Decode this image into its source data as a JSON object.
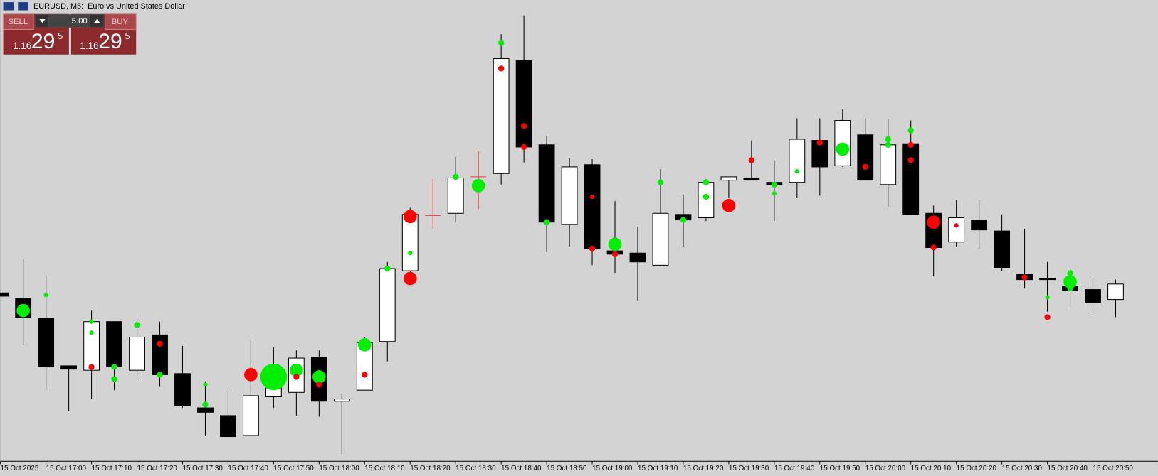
{
  "chart_data": {
    "type": "candlestick",
    "title": "EURUSD, M5:  Euro vs United States Dollar",
    "categories": [
      "15 Oct 2025",
      null,
      "15 Oct 17:00",
      null,
      "15 Oct 17:10",
      null,
      "15 Oct 17:20",
      null,
      "15 Oct 17:30",
      null,
      "15 Oct 17:40",
      null,
      "15 Oct 17:50",
      null,
      "15 Oct 18:00",
      null,
      "15 Oct 18:10",
      null,
      "15 Oct 18:20",
      null,
      "15 Oct 18:30",
      null,
      "15 Oct 18:40",
      null,
      "15 Oct 18:50",
      null,
      "15 Oct 19:00",
      null,
      "15 Oct 19:10",
      null,
      "15 Oct 19:20",
      null,
      "15 Oct 19:30",
      null,
      "15 Oct 19:40",
      null,
      "15 Oct 19:50",
      null,
      "15 Oct 20:00",
      null,
      "15 Oct 20:10",
      null,
      "15 Oct 20:20",
      null,
      "15 Oct 20:30",
      null,
      "15 Oct 20:40",
      null,
      "15 Oct 20:50",
      null
    ],
    "open": [
      1.16285,
      1.1628,
      1.16262,
      1.16219,
      1.16215,
      1.16259,
      1.16215,
      1.16247,
      1.16212,
      1.16181,
      1.16174,
      1.16156,
      1.16191,
      1.16195,
      1.16227,
      1.16187,
      1.16197,
      1.16241,
      1.16305,
      1.16355,
      1.16357,
      1.1639,
      1.16393,
      1.16495,
      1.16419,
      1.16347,
      1.16401,
      1.16323,
      1.16321,
      1.1631,
      1.16356,
      1.16353,
      1.16387,
      1.16389,
      1.16385,
      1.16385,
      1.16423,
      1.164,
      1.16428,
      1.16383,
      1.1642,
      1.16357,
      1.16331,
      1.16351,
      1.16341,
      1.16302,
      1.16298,
      1.16291,
      1.16288,
      1.16279
    ],
    "high": [
      1.16285,
      1.16315,
      1.16301,
      1.16219,
      1.16269,
      1.16259,
      1.16263,
      1.16259,
      1.16237,
      1.16205,
      1.16196,
      1.16243,
      1.16236,
      1.16233,
      1.16233,
      1.16194,
      1.16245,
      1.16313,
      1.16362,
      1.16388,
      1.16408,
      1.16413,
      1.16519,
      1.16536,
      1.16427,
      1.16407,
      1.16406,
      1.16368,
      1.16345,
      1.16397,
      1.16374,
      1.16388,
      1.1639,
      1.16423,
      1.16405,
      1.16443,
      1.16443,
      1.16451,
      1.16443,
      1.16442,
      1.16441,
      1.16364,
      1.16369,
      1.16369,
      1.16356,
      1.16343,
      1.16313,
      1.16307,
      1.16299,
      1.16297
    ],
    "low": [
      1.16282,
      1.16238,
      1.16197,
      1.16178,
      1.16189,
      1.16197,
      1.16206,
      1.162,
      1.16181,
      1.16156,
      1.16155,
      1.16156,
      1.16181,
      1.16174,
      1.16173,
      1.16139,
      1.16197,
      1.16223,
      1.16298,
      1.16343,
      1.16349,
      1.16361,
      1.16383,
      1.16403,
      1.16322,
      1.16327,
      1.1631,
      1.16303,
      1.16278,
      1.16309,
      1.16326,
      1.1635,
      1.16371,
      1.16387,
      1.1635,
      1.16371,
      1.16373,
      1.16399,
      1.16387,
      1.16363,
      1.16356,
      1.163,
      1.16327,
      1.16325,
      1.16305,
      1.16289,
      1.16268,
      1.16271,
      1.16265,
      1.16263
    ],
    "close": [
      1.16282,
      1.16263,
      1.16218,
      1.16216,
      1.16259,
      1.16218,
      1.16245,
      1.16211,
      1.16183,
      1.16177,
      1.16155,
      1.16192,
      1.16199,
      1.16226,
      1.16187,
      1.16189,
      1.1624,
      1.16307,
      1.16356,
      1.16355,
      1.16389,
      1.1639,
      1.16497,
      1.16417,
      1.16349,
      1.16399,
      1.16325,
      1.1632,
      1.16313,
      1.16357,
      1.16351,
      1.16385,
      1.1639,
      1.16387,
      1.16383,
      1.16424,
      1.16399,
      1.16441,
      1.16387,
      1.16419,
      1.16356,
      1.16326,
      1.16353,
      1.16342,
      1.16308,
      1.16297,
      1.16297,
      1.16287,
      1.16276,
      1.16293
    ],
    "up_color": "#ffffff",
    "down_color": "#000000",
    "doji_color": "#e53935",
    "series": [
      {
        "color": "#00ee00",
        "values": [
          null,
          1.16269,
          1.16283,
          null,
          1.16259,
          1.16218,
          1.16256,
          1.16211,
          null,
          1.16202,
          null,
          null,
          1.16209,
          1.16215,
          1.16209,
          null,
          1.16238,
          1.16307,
          1.16321,
          null,
          1.1639,
          1.16382,
          1.16511,
          null,
          1.16349,
          null,
          null,
          1.16329,
          null,
          1.16385,
          1.16351,
          1.16385,
          null,
          null,
          1.16383,
          1.16395,
          null,
          1.16415,
          null,
          1.16424,
          1.16432,
          null,
          null,
          null,
          null,
          null,
          1.16281,
          1.16303,
          null,
          null
        ],
        "sizes": [
          null,
          9,
          3,
          null,
          3,
          4,
          4,
          4,
          null,
          3,
          null,
          null,
          18,
          9,
          9,
          null,
          9,
          4,
          3,
          null,
          4,
          9,
          4,
          null,
          4,
          null,
          null,
          9,
          null,
          4,
          4,
          4,
          null,
          null,
          4,
          3,
          null,
          9,
          null,
          4,
          4,
          null,
          null,
          null,
          null,
          null,
          3,
          4,
          null,
          null
        ]
      },
      {
        "color": "#00ee00",
        "values": [
          null,
          null,
          null,
          null,
          1.16249,
          1.16207,
          null,
          null,
          null,
          1.16184,
          null,
          null,
          null,
          null,
          null,
          null,
          null,
          null,
          null,
          null,
          null,
          null,
          null,
          null,
          null,
          null,
          null,
          null,
          null,
          null,
          null,
          1.16372,
          null,
          null,
          1.16375,
          null,
          null,
          null,
          null,
          1.16419,
          null,
          null,
          null,
          null,
          null,
          null,
          null,
          1.16295,
          null,
          null
        ],
        "sizes": [
          null,
          null,
          null,
          null,
          3,
          4,
          null,
          null,
          null,
          4,
          null,
          null,
          null,
          null,
          null,
          null,
          null,
          null,
          null,
          null,
          null,
          null,
          null,
          null,
          null,
          null,
          null,
          null,
          null,
          null,
          null,
          4,
          null,
          null,
          3,
          null,
          null,
          null,
          null,
          4,
          null,
          null,
          null,
          null,
          null,
          null,
          null,
          9,
          null,
          null
        ]
      },
      {
        "color": "#00ee00",
        "values": [
          null,
          null,
          null,
          null,
          null,
          null,
          null,
          null,
          null,
          null,
          null,
          null,
          null,
          null,
          null,
          null,
          null,
          null,
          null,
          null,
          null,
          null,
          null,
          null,
          null,
          null,
          null,
          null,
          null,
          null,
          null,
          null,
          null,
          null,
          null,
          null,
          null,
          null,
          null,
          null,
          null,
          null,
          null,
          null,
          null,
          null,
          null,
          1.16289,
          null,
          null
        ],
        "sizes": [
          null,
          null,
          null,
          null,
          null,
          null,
          null,
          null,
          null,
          null,
          null,
          null,
          null,
          null,
          null,
          null,
          null,
          null,
          null,
          null,
          null,
          null,
          null,
          null,
          null,
          null,
          null,
          null,
          null,
          null,
          null,
          null,
          null,
          null,
          null,
          null,
          null,
          null,
          null,
          null,
          null,
          null,
          null,
          null,
          null,
          null,
          null,
          4,
          null,
          null
        ]
      },
      {
        "color": "#ff0000",
        "values": [
          null,
          null,
          null,
          null,
          1.16218,
          null,
          null,
          1.16239,
          null,
          null,
          null,
          1.16211,
          null,
          1.16209,
          1.16202,
          null,
          1.16211,
          null,
          1.16354,
          null,
          null,
          null,
          1.16488,
          1.16436,
          null,
          null,
          1.16372,
          1.1632,
          null,
          null,
          null,
          null,
          1.16364,
          1.16405,
          null,
          null,
          1.16421,
          null,
          1.16399,
          null,
          1.16419,
          1.16349,
          1.16346,
          null,
          null,
          1.16299,
          1.16263,
          null,
          null,
          null
        ],
        "sizes": [
          null,
          null,
          null,
          null,
          4,
          null,
          null,
          4,
          null,
          null,
          null,
          9,
          null,
          4,
          4,
          null,
          4,
          null,
          9,
          null,
          null,
          null,
          4,
          4,
          null,
          null,
          3,
          4,
          null,
          null,
          null,
          null,
          9,
          4,
          null,
          null,
          4,
          null,
          4,
          null,
          4,
          9,
          3,
          null,
          null,
          4,
          4,
          null,
          null,
          null
        ]
      },
      {
        "color": "#ff0000",
        "values": [
          null,
          null,
          null,
          null,
          null,
          null,
          null,
          null,
          null,
          null,
          null,
          null,
          null,
          null,
          null,
          null,
          null,
          null,
          1.16298,
          null,
          null,
          null,
          null,
          1.16417,
          null,
          null,
          1.16325,
          null,
          null,
          null,
          null,
          null,
          null,
          null,
          null,
          null,
          null,
          null,
          null,
          null,
          1.16405,
          1.16326,
          null,
          null,
          null,
          null,
          null,
          null,
          null,
          null
        ],
        "sizes": [
          null,
          null,
          null,
          null,
          null,
          null,
          null,
          null,
          null,
          null,
          null,
          null,
          null,
          null,
          null,
          null,
          null,
          null,
          9,
          null,
          null,
          null,
          null,
          4,
          null,
          null,
          4,
          null,
          null,
          null,
          null,
          null,
          null,
          null,
          null,
          null,
          null,
          null,
          null,
          null,
          4,
          4,
          null,
          null,
          null,
          null,
          null,
          null,
          null,
          null
        ]
      }
    ],
    "ylim": [
      1.1613,
      1.1655
    ]
  },
  "trade_panel": {
    "sell_label": "SELL",
    "buy_label": "BUY",
    "volume": "5.00",
    "sell_price": [
      "1.16",
      "29",
      "5"
    ],
    "buy_price": [
      "1.16",
      "29",
      "5"
    ]
  }
}
